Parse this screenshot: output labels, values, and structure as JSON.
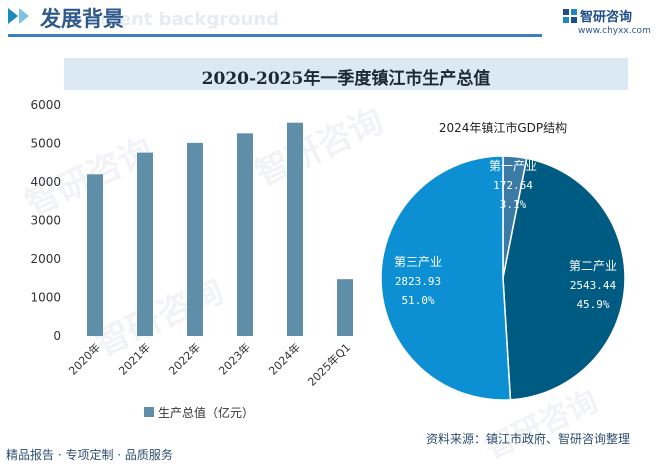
{
  "header": {
    "title": "发展背景",
    "ghost_text": "ment background",
    "brand_name": "智研咨询",
    "brand_url": "www.chyxx.com"
  },
  "watermark": "智研咨询",
  "footer": {
    "left": "精品报告 · 专项定制 · 品质服务",
    "source": "资料来源：镇江市政府、智研咨询整理"
  },
  "colors": {
    "bar": "#5f8ea8",
    "pie_primary": "#3c7aa6",
    "pie_secondary": "#005b82",
    "pie_tertiary": "#0d8fd3"
  },
  "chart_data": [
    {
      "type": "bar",
      "title": "2020-2025年一季度镇江市生产总值",
      "categories": [
        "2020年",
        "2021年",
        "2022年",
        "2023年",
        "2024年",
        "2025年Q1"
      ],
      "series": [
        {
          "name": "生产总值（亿元）",
          "values": [
            4200,
            4763,
            5017,
            5264,
            5540,
            1476
          ]
        }
      ],
      "ylim": [
        0,
        6000
      ],
      "yticks": [
        0,
        1000,
        2000,
        3000,
        4000,
        5000,
        6000
      ],
      "xlabel": "",
      "ylabel": "",
      "legend": "bottom-left"
    },
    {
      "type": "pie",
      "title": "2024年镇江市GDP结构",
      "slices": [
        {
          "label": "第一产业",
          "value": 172.64,
          "value_text": "172.64",
          "pct": "3.1%"
        },
        {
          "label": "第二产业",
          "value": 2543.44,
          "value_text": "2543.44",
          "pct": "45.9%"
        },
        {
          "label": "第三产业",
          "value": 2823.93,
          "value_text": "2823.93",
          "pct": "51.0%"
        }
      ]
    }
  ]
}
